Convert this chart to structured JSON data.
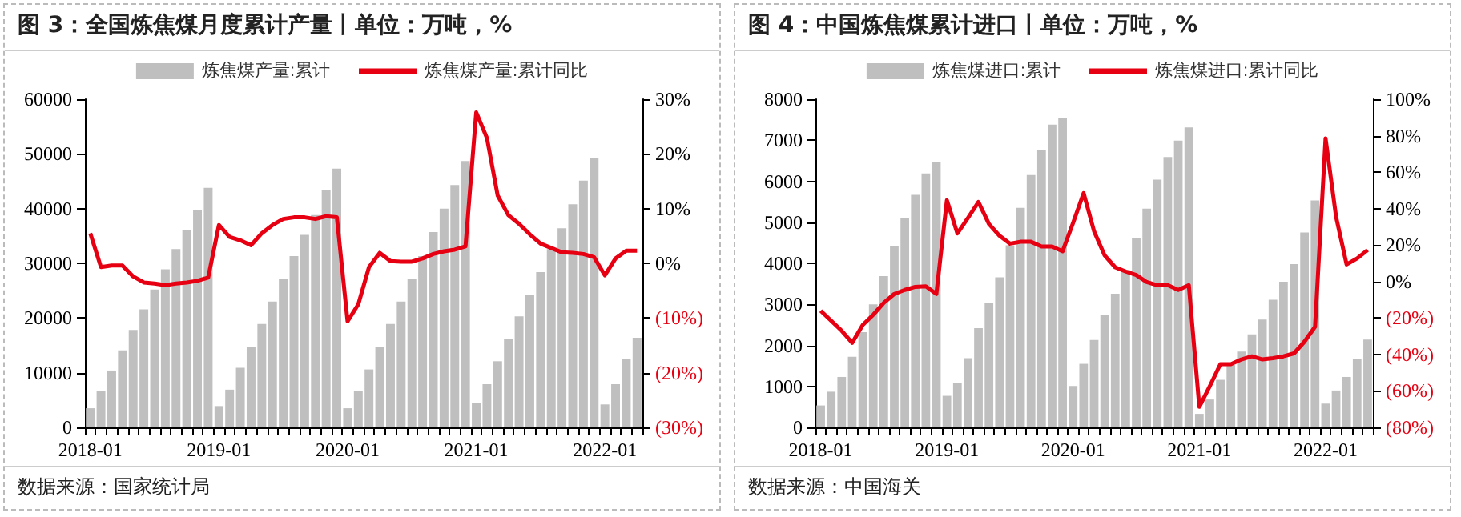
{
  "chart_data": [
    {
      "type": "bar",
      "title": "图 3：全国炼焦煤月度累计产量丨单位：万吨，%",
      "categories": [
        "2018-01",
        null,
        null,
        null,
        null,
        null,
        null,
        null,
        null,
        null,
        null,
        null,
        "2019-01",
        null,
        null,
        null,
        null,
        null,
        null,
        null,
        null,
        null,
        null,
        null,
        "2020-01",
        null,
        null,
        null,
        null,
        null,
        null,
        null,
        null,
        null,
        null,
        null,
        "2021-01",
        null,
        null,
        null,
        null,
        null,
        null,
        null,
        null,
        null,
        null,
        null,
        "2022-01",
        null,
        null,
        null
      ],
      "series": [
        {
          "name": "炼焦煤产量:累计",
          "color": "#bfbfbf",
          "values": [
            3500,
            6600,
            10400,
            14100,
            17800,
            21600,
            25200,
            28900,
            32600,
            36100,
            39700,
            43800,
            3900,
            6900,
            10900,
            14700,
            18900,
            23000,
            27200,
            31300,
            35200,
            38800,
            43300,
            47300,
            3500,
            6600,
            10600,
            14700,
            18900,
            23000,
            27200,
            31300,
            35700,
            40000,
            44300,
            48700,
            4500,
            7900,
            12100,
            16100,
            20300,
            24300,
            28400,
            32600,
            36400,
            40800,
            45100,
            49200,
            4200,
            7900,
            12500,
            16400
          ]
        },
        {
          "name": "炼焦煤产量:累计同比",
          "type": "line",
          "axis": "y2",
          "color": "#e60012",
          "values": [
            5.5,
            -0.7,
            -0.4,
            -0.4,
            -2.4,
            -3.5,
            -3.7,
            -4.0,
            -3.7,
            -3.5,
            -3.2,
            -2.6,
            7.0,
            4.8,
            4.2,
            3.3,
            5.5,
            7.0,
            8.1,
            8.4,
            8.4,
            8.1,
            8.6,
            8.4,
            -10.6,
            -7.5,
            -0.7,
            1.9,
            0.4,
            0.3,
            0.3,
            0.9,
            1.7,
            2.2,
            2.5,
            3.1,
            27.6,
            22.9,
            12.4,
            8.8,
            7.2,
            5.3,
            3.6,
            2.8,
            2.0,
            1.9,
            1.7,
            1.1,
            -2.2,
            0.9,
            2.3,
            2.3
          ]
        }
      ],
      "ylim": [
        0,
        60000
      ],
      "yticks": [
        0,
        10000,
        20000,
        30000,
        40000,
        50000,
        60000
      ],
      "y2lim": [
        -30,
        30
      ],
      "y2ticks": [
        {
          "value": -30,
          "label": "(30%)"
        },
        {
          "value": -20,
          "label": "(20%)"
        },
        {
          "value": -10,
          "label": "(10%)"
        },
        {
          "value": 0,
          "label": "0%"
        },
        {
          "value": 10,
          "label": "10%"
        },
        {
          "value": 20,
          "label": "20%"
        },
        {
          "value": 30,
          "label": "30%"
        }
      ],
      "legend": "top",
      "grid": false,
      "annotations": [
        "数据来源：国家统计局"
      ]
    },
    {
      "type": "bar",
      "title": "图 4：中国炼焦煤累计进口丨单位：万吨，%",
      "categories": [
        "2018-01",
        null,
        null,
        null,
        null,
        null,
        null,
        null,
        null,
        null,
        null,
        null,
        "2019-01",
        null,
        null,
        null,
        null,
        null,
        null,
        null,
        null,
        null,
        null,
        null,
        "2020-01",
        null,
        null,
        null,
        null,
        null,
        null,
        null,
        null,
        null,
        null,
        null,
        "2021-01",
        null,
        null,
        null,
        null,
        null,
        null,
        null,
        null,
        null,
        null,
        null,
        "2022-01",
        null,
        null,
        null,
        null
      ],
      "series": [
        {
          "name": "炼焦煤进口:累计",
          "color": "#bfbfbf",
          "values": [
            535,
            870,
            1230,
            1720,
            2320,
            3000,
            3690,
            4410,
            5110,
            5670,
            6190,
            6480,
            770,
            1090,
            1690,
            2420,
            3040,
            3660,
            4440,
            5350,
            6150,
            6760,
            7380,
            7530,
            1010,
            1550,
            2130,
            2750,
            3260,
            3840,
            4610,
            5330,
            6040,
            6590,
            6990,
            7310,
            330,
            680,
            1160,
            1520,
            1850,
            2270,
            2630,
            3110,
            3550,
            3980,
            4750,
            5530,
            580,
            900,
            1230,
            1660,
            2140
          ]
        },
        {
          "name": "炼焦煤进口:累计同比",
          "type": "line",
          "axis": "y2",
          "color": "#e60012",
          "values": [
            -16,
            -21.5,
            -27,
            -33.6,
            -23.8,
            -18.2,
            -11.7,
            -6.8,
            -4.6,
            -2.9,
            -2.6,
            -6.8,
            44.6,
            26.4,
            34.9,
            43.6,
            31.6,
            25.1,
            20.8,
            21.8,
            21.8,
            19.2,
            19.2,
            16.6,
            32.2,
            48.5,
            27.4,
            14.3,
            7.8,
            5.5,
            3.6,
            -0.3,
            -2.0,
            -2.0,
            -4.6,
            -2.0,
            -68.7,
            -57.3,
            -45.3,
            -45.3,
            -42.7,
            -41.0,
            -42.7,
            -42.0,
            -41.0,
            -39.4,
            -32.9,
            -24.8,
            78.5,
            35.5,
            9.4,
            12.7,
            17.3
          ]
        }
      ],
      "ylim": [
        0,
        8000
      ],
      "yticks": [
        0,
        1000,
        2000,
        3000,
        4000,
        5000,
        6000,
        7000,
        8000
      ],
      "y2lim": [
        -80,
        100
      ],
      "y2ticks": [
        {
          "value": -80,
          "label": "(80%)"
        },
        {
          "value": -60,
          "label": "(60%)"
        },
        {
          "value": -40,
          "label": "(40%)"
        },
        {
          "value": -20,
          "label": "(20%)"
        },
        {
          "value": 0,
          "label": "0%"
        },
        {
          "value": 20,
          "label": "20%"
        },
        {
          "value": 40,
          "label": "40%"
        },
        {
          "value": 60,
          "label": "60%"
        },
        {
          "value": 80,
          "label": "80%"
        },
        {
          "value": 100,
          "label": "100%"
        }
      ],
      "legend": "top",
      "grid": false,
      "annotations": [
        "数据来源：中国海关"
      ]
    }
  ]
}
